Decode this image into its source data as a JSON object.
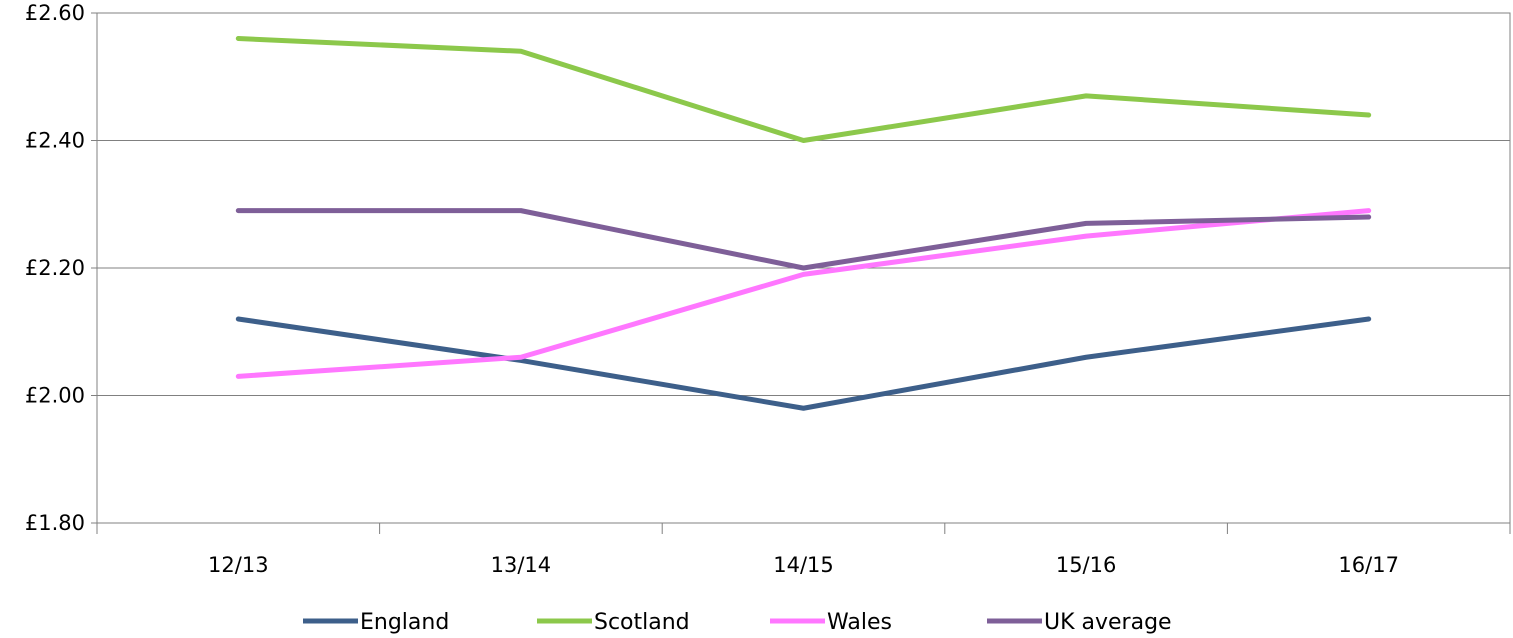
{
  "chart_data": {
    "type": "line",
    "title": "",
    "xlabel": "",
    "ylabel": "",
    "categories": [
      "12/13",
      "13/14",
      "14/15",
      "15/16",
      "16/17"
    ],
    "ylim": [
      1.8,
      2.6
    ],
    "yticks": [
      1.8,
      2.0,
      2.2,
      2.4,
      2.6
    ],
    "ytick_labels": [
      "£1.80",
      "£2.00",
      "£2.20",
      "£2.40",
      "£2.60"
    ],
    "grid": true,
    "legend_position": "bottom",
    "series": [
      {
        "name": "England",
        "color": "#3d5f8a",
        "values": [
          2.12,
          2.055,
          1.98,
          2.06,
          2.12
        ]
      },
      {
        "name": "Scotland",
        "color": "#8cc84b",
        "values": [
          2.56,
          2.54,
          2.4,
          2.47,
          2.44
        ]
      },
      {
        "name": "Wales",
        "color": "#ff77ff",
        "values": [
          2.03,
          2.06,
          2.19,
          2.25,
          2.29
        ]
      },
      {
        "name": "UK average",
        "color": "#7e5f98",
        "values": [
          2.29,
          2.29,
          2.2,
          2.27,
          2.28
        ]
      }
    ]
  }
}
